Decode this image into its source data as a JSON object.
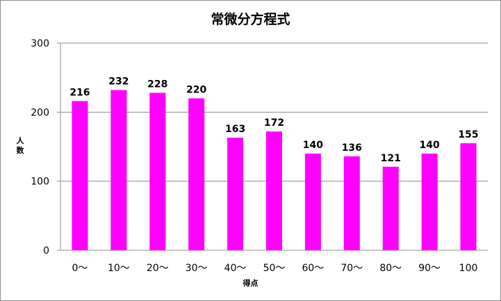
{
  "chart_data": {
    "type": "bar",
    "title": "常微分方程式",
    "xlabel": "得点",
    "ylabel": "人数",
    "categories": [
      "0～",
      "10～",
      "20～",
      "30～",
      "40～",
      "50～",
      "60～",
      "70～",
      "80～",
      "90～",
      "100"
    ],
    "values": [
      216,
      232,
      228,
      220,
      163,
      172,
      140,
      136,
      121,
      140,
      155
    ],
    "ylim": [
      0,
      300
    ],
    "yticks": [
      "0",
      "100",
      "200",
      "300"
    ],
    "bar_color": "#ff00ff",
    "grid": true,
    "legend": "none"
  }
}
